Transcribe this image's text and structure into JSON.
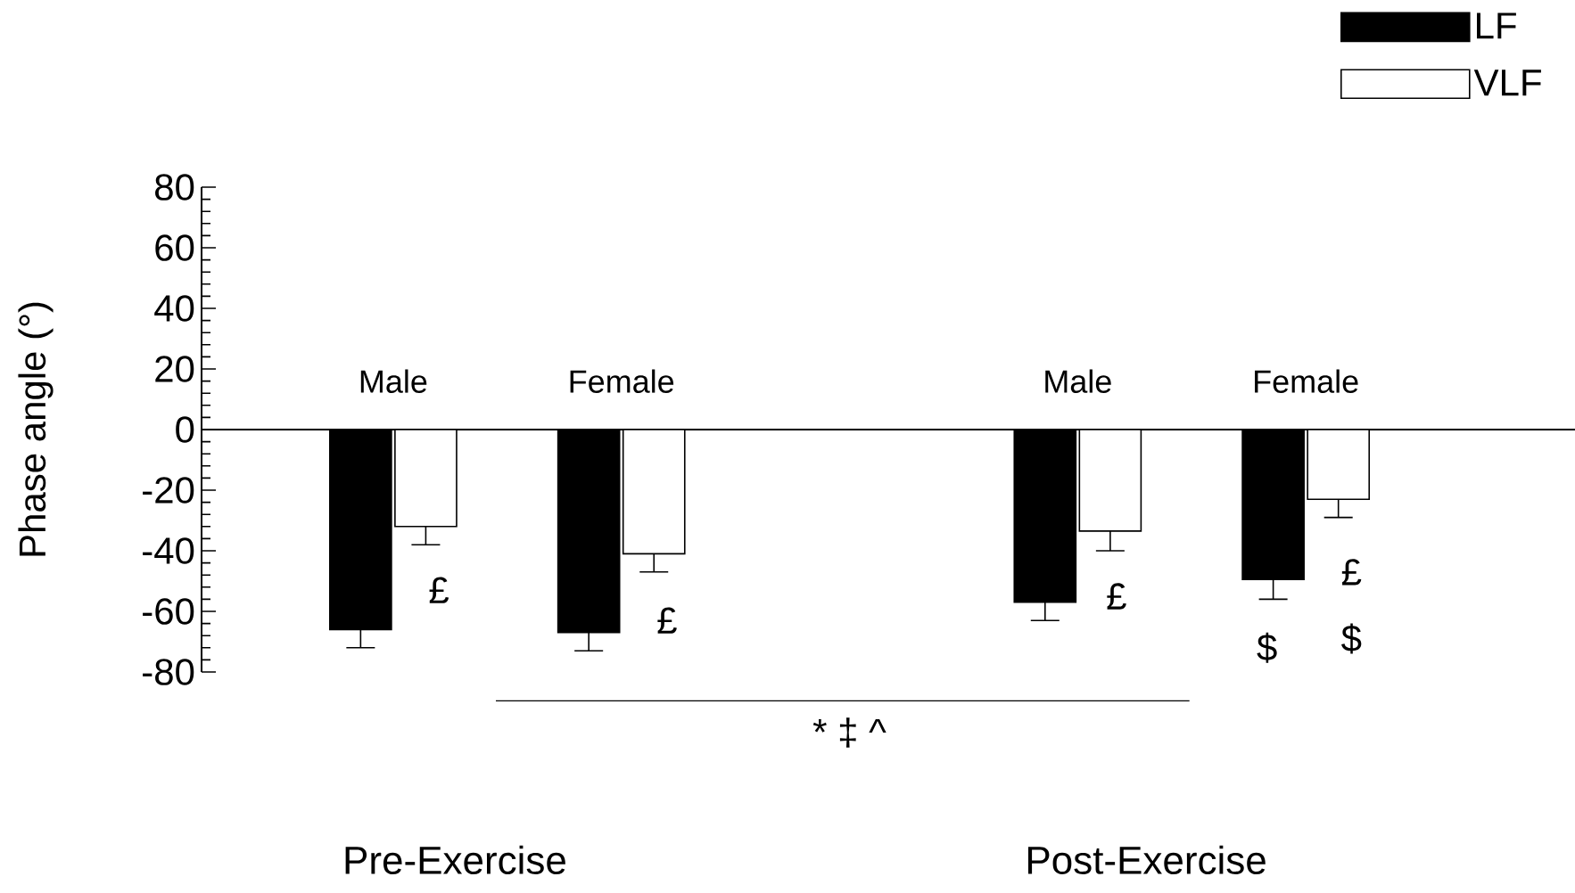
{
  "chart_data": {
    "type": "bar",
    "ylabel": "Phase angle (°)",
    "categories": [
      "Male",
      "Female",
      null,
      "Male",
      "Female"
    ],
    "series": [
      {
        "name": "LF",
        "color": "#000000",
        "values": [
          -66,
          -67,
          null,
          -57,
          -49.5
        ],
        "errors": [
          6,
          6,
          null,
          6,
          6.5
        ]
      },
      {
        "name": "VLF",
        "color": "#ffffff",
        "values": [
          -32,
          -41,
          null,
          -33.5,
          -23
        ],
        "errors": [
          6,
          6,
          null,
          6.5,
          6
        ]
      }
    ],
    "ylim": [
      -80,
      80
    ],
    "yticks": [
      -80,
      -60,
      -40,
      -20,
      0,
      20,
      40,
      60,
      80
    ],
    "legend": "top right",
    "annotations": [
      "£",
      "£",
      "£",
      "$",
      "£",
      "$",
      "* ‡ ^",
      "Pre-Exercise",
      "Post-Exercise"
    ]
  }
}
